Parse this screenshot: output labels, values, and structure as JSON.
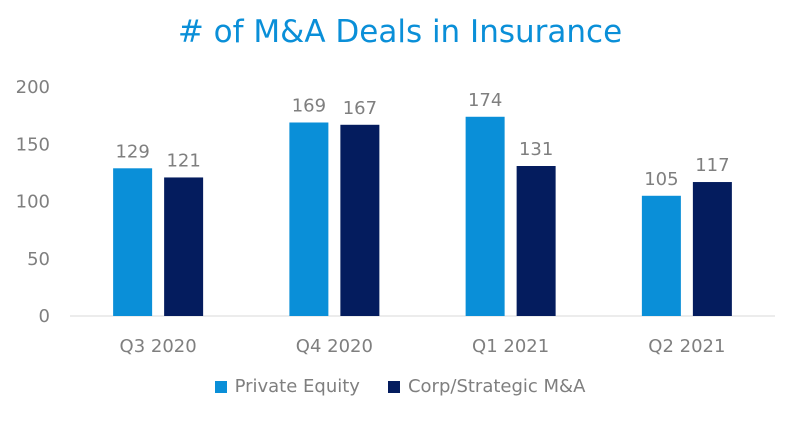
{
  "chart_data": {
    "type": "bar",
    "title": "# of M&A Deals in Insurance",
    "categories": [
      "Q3 2020",
      "Q4 2020",
      "Q1 2021",
      "Q2 2021"
    ],
    "series": [
      {
        "name": "Private Equity",
        "values": [
          129,
          169,
          174,
          105
        ],
        "color": "#0a8fd8"
      },
      {
        "name": "Corp/Strategic M&A",
        "values": [
          121,
          167,
          131,
          117
        ],
        "color": "#041c5e"
      }
    ],
    "ylim": [
      0,
      200
    ],
    "yticks": [
      "0",
      "50",
      "100",
      "150",
      "200"
    ],
    "xlabel": "",
    "ylabel": "",
    "grid": false,
    "legend_position": "bottom"
  }
}
